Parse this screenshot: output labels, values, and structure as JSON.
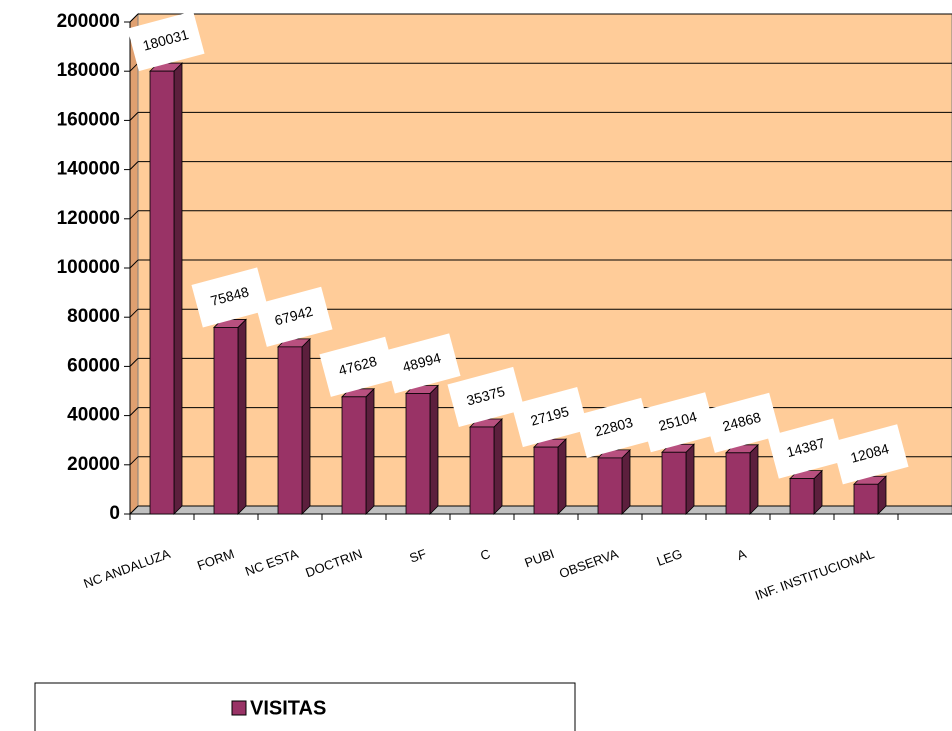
{
  "chart_data": {
    "type": "bar",
    "categories": [
      "NC ANDALUZA",
      "FORM",
      "NC ESTA",
      "DOCTRIN",
      "SF",
      "C",
      "PUBI",
      "OBSERVA",
      "LEG",
      "A",
      null,
      "INF. INSTITUCIONAL"
    ],
    "series": [
      {
        "name": "VISITAS",
        "color": "#993366",
        "values": [
          180031,
          75848,
          67942,
          47628,
          48994,
          35375,
          27195,
          22803,
          25104,
          24868,
          14387,
          12084
        ]
      }
    ],
    "ylim": [
      0,
      200000
    ],
    "yticks": [
      0,
      20000,
      40000,
      60000,
      80000,
      100000,
      120000,
      140000,
      160000,
      180000,
      200000
    ],
    "grid": true
  }
}
